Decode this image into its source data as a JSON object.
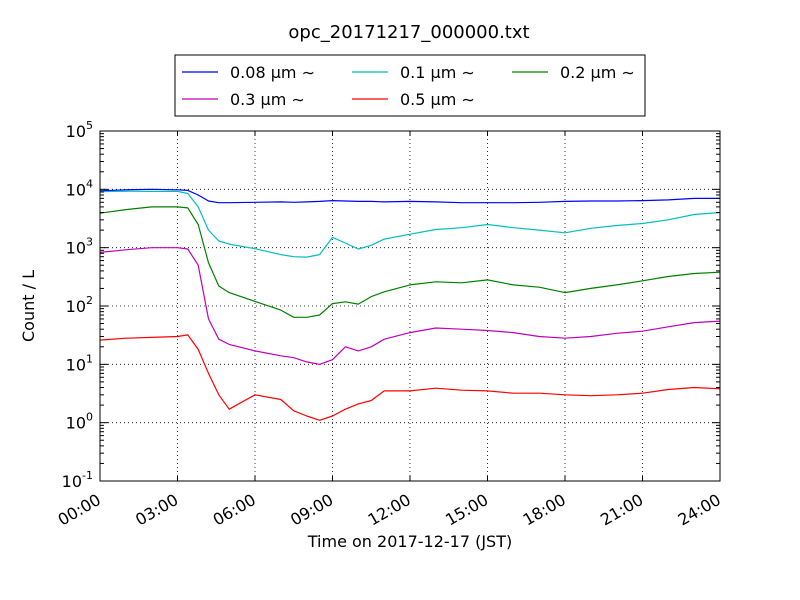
{
  "chart_data": {
    "type": "line",
    "title": "opc_20171217_000000.txt",
    "xlabel": "Time on 2017-12-17 (JST)",
    "ylabel": "Count / L",
    "x_unit": "hours",
    "xlim": [
      0,
      24
    ],
    "ylim": [
      0.1,
      100000
    ],
    "yscale": "log",
    "grid": true,
    "legend_position": "top-center",
    "x_tick_labels": [
      "00:00",
      "03:00",
      "06:00",
      "09:00",
      "12:00",
      "15:00",
      "18:00",
      "21:00",
      "24:00"
    ],
    "y_tick_labels": [
      {
        "base": "10",
        "exp": "-1"
      },
      {
        "base": "10",
        "exp": "0"
      },
      {
        "base": "10",
        "exp": "1"
      },
      {
        "base": "10",
        "exp": "2"
      },
      {
        "base": "10",
        "exp": "3"
      },
      {
        "base": "10",
        "exp": "4"
      },
      {
        "base": "10",
        "exp": "5"
      }
    ],
    "x": [
      0,
      1,
      2,
      3,
      3.4,
      3.8,
      4.2,
      4.6,
      5,
      6,
      7,
      7.5,
      8,
      8.5,
      9,
      9.5,
      10,
      10.5,
      11,
      12,
      13,
      14,
      15,
      16,
      17,
      18,
      19,
      20,
      21,
      22,
      23,
      24
    ],
    "series": [
      {
        "name": "0.08 μm ∼",
        "color": "#0000ff",
        "values": [
          9400,
          9800,
          10000,
          9800,
          9600,
          8000,
          6300,
          5900,
          5900,
          6000,
          6100,
          6000,
          6100,
          6200,
          6400,
          6300,
          6200,
          6200,
          6100,
          6200,
          6100,
          5900,
          5900,
          5900,
          6000,
          6200,
          6300,
          6300,
          6400,
          6600,
          7000,
          7000
        ]
      },
      {
        "name": "0.1 μm ∼",
        "color": "#00bfbf",
        "values": [
          9100,
          9300,
          9200,
          9200,
          8500,
          5000,
          2000,
          1300,
          1150,
          960,
          760,
          700,
          690,
          760,
          1500,
          1200,
          950,
          1100,
          1400,
          1700,
          2050,
          2200,
          2500,
          2200,
          2000,
          1800,
          2150,
          2400,
          2600,
          3000,
          3700,
          4000
        ]
      },
      {
        "name": "0.2 μm ∼",
        "color": "#008000",
        "values": [
          3900,
          4500,
          5000,
          5000,
          4800,
          2500,
          550,
          220,
          170,
          120,
          85,
          64,
          64,
          70,
          110,
          118,
          108,
          145,
          175,
          230,
          260,
          250,
          280,
          230,
          210,
          170,
          200,
          230,
          270,
          320,
          360,
          380
        ]
      },
      {
        "name": "0.3 μm ∼",
        "color": "#bf00bf",
        "values": [
          830,
          920,
          1000,
          1000,
          950,
          500,
          60,
          27,
          22,
          17,
          14,
          13,
          11,
          10,
          12,
          20,
          17,
          20,
          27,
          35,
          42,
          40,
          38,
          35,
          30,
          28,
          30,
          34,
          37,
          44,
          52,
          55
        ]
      },
      {
        "name": "0.5 μm ∼",
        "color": "#ff0000",
        "values": [
          26,
          28,
          29,
          30,
          32,
          18,
          7,
          3,
          1.7,
          3,
          2.5,
          1.6,
          1.3,
          1.1,
          1.3,
          1.7,
          2.1,
          2.4,
          3.5,
          3.5,
          3.9,
          3.6,
          3.5,
          3.2,
          3.2,
          3.0,
          2.9,
          3.0,
          3.2,
          3.7,
          4.0,
          3.8
        ]
      }
    ]
  }
}
